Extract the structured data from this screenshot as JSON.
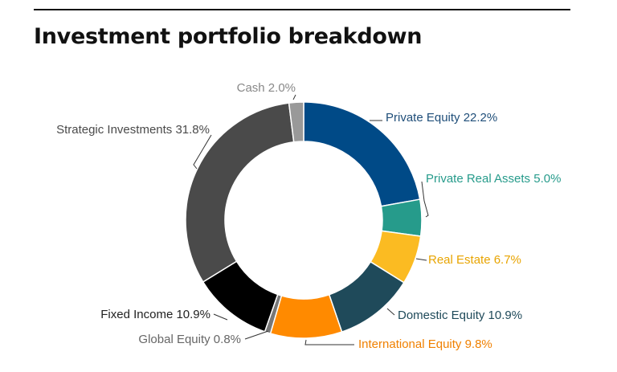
{
  "title": "Investment portfolio breakdown",
  "chart_data": {
    "type": "pie",
    "donut": true,
    "title": "Investment portfolio breakdown",
    "value_unit": "%",
    "slices": [
      {
        "label": "Private Equity",
        "display": "Private Equity 22.2%",
        "value": 22.2,
        "color": "#004a87"
      },
      {
        "label": "Private Real Assets",
        "display": "Private Real Assets 5.0%",
        "value": 5.0,
        "color": "#269b8b"
      },
      {
        "label": "Real Estate",
        "display": "Real Estate 6.7%",
        "value": 6.7,
        "color": "#fbbb22"
      },
      {
        "label": "Domestic Equity",
        "display": "Domestic Equity 10.9%",
        "value": 10.9,
        "color": "#1f4a5a"
      },
      {
        "label": "International Equity",
        "display": "International Equity 9.8%",
        "value": 9.8,
        "color": "#ff8a00"
      },
      {
        "label": "Global Equity",
        "display": "Global Equity 0.8%",
        "value": 0.8,
        "color": "#777777"
      },
      {
        "label": "Fixed Income",
        "display": "Fixed Income 10.9%",
        "value": 10.9,
        "color": "#000000"
      },
      {
        "label": "Strategic Investments",
        "display": "Strategic Investments 31.8%",
        "value": 31.8,
        "color": "#4a4a4a"
      },
      {
        "label": "Cash",
        "display": "Cash 2.0%",
        "value": 2.0,
        "color": "#999999"
      }
    ],
    "label_colors": {
      "Private Equity": "#1f4e79",
      "Private Real Assets": "#269b8b",
      "Real Estate": "#e8a400",
      "Domestic Equity": "#1f4a5a",
      "International Equity": "#f08000",
      "Global Equity": "#666666",
      "Fixed Income": "#222222",
      "Strategic Investments": "#4a4a4a",
      "Cash": "#888888"
    }
  }
}
